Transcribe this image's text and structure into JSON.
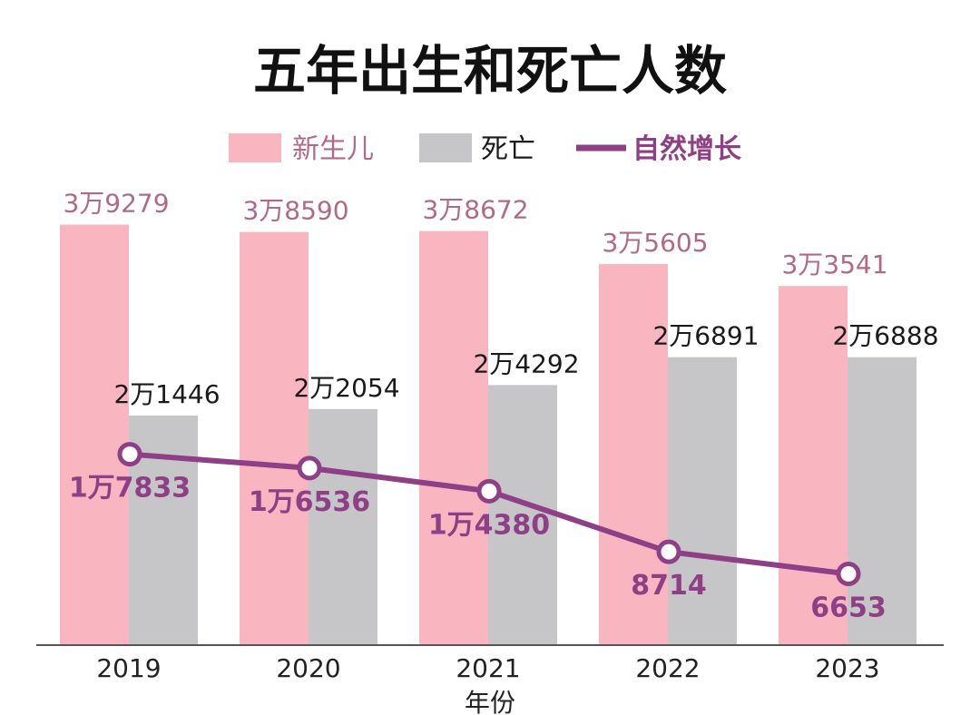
{
  "chart_data": {
    "type": "bar",
    "title": "五年出生和死亡人数",
    "xlabel": "年份",
    "ylabel": "",
    "categories": [
      "2019",
      "2020",
      "2021",
      "2022",
      "2023"
    ],
    "ylim": [
      0,
      40000
    ],
    "grid": false,
    "legend_position": "top-center",
    "series": [
      {
        "name": "新生儿",
        "type": "bar",
        "color": "#f9b6c1",
        "values": [
          39279,
          38590,
          38672,
          35605,
          33541
        ],
        "labels": [
          "3万9279",
          "3万8590",
          "3万8672",
          "3万5605",
          "3万3541"
        ],
        "label_color": "#b06a88"
      },
      {
        "name": "死亡",
        "type": "bar",
        "color": "#c6c6c8",
        "values": [
          21446,
          22054,
          24292,
          26891,
          26888
        ],
        "labels": [
          "2万1446",
          "2万2054",
          "2万4292",
          "2万6891",
          "2万6888"
        ],
        "label_color": "#1a1a1a"
      },
      {
        "name": "自然增长",
        "type": "line",
        "color": "#8e3f86",
        "values": [
          17833,
          16536,
          14380,
          8714,
          6653
        ],
        "labels": [
          "1万7833",
          "1万6536",
          "1万4380",
          "8714",
          "6653"
        ],
        "label_color": "#8e3f86"
      }
    ]
  }
}
